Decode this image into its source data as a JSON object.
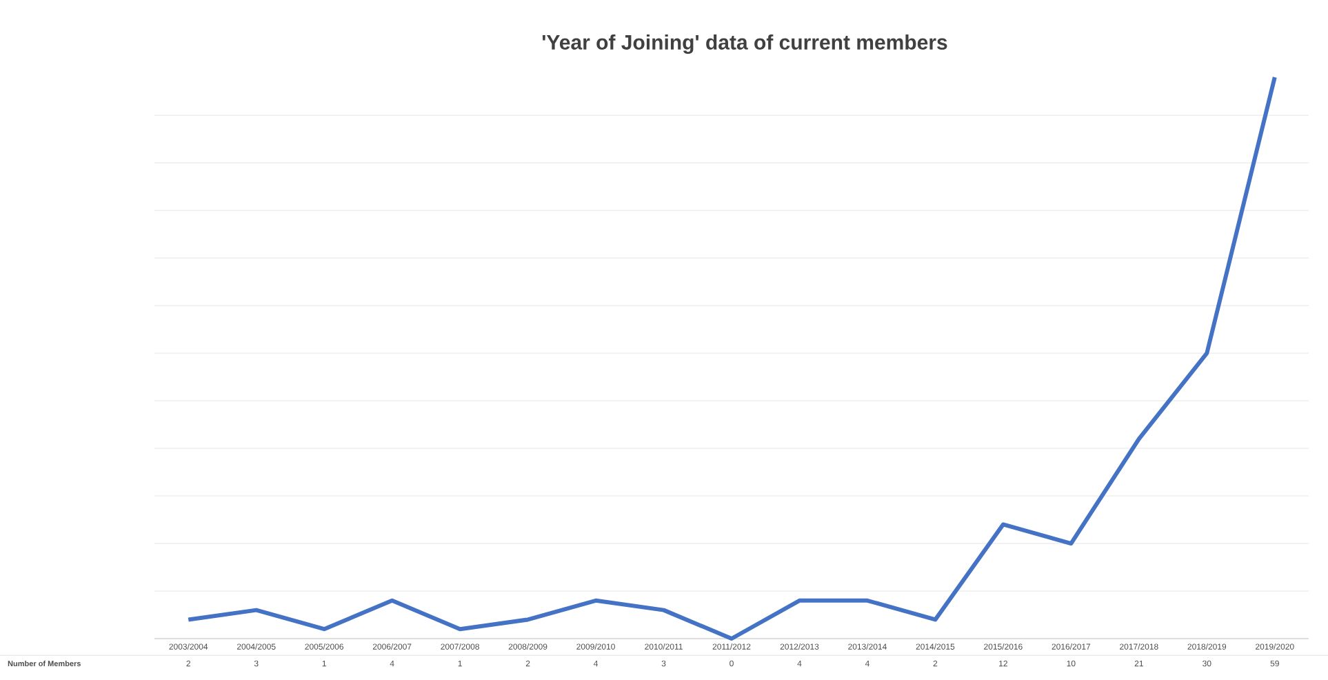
{
  "chart_data": {
    "type": "line",
    "title": "'Year of Joining' data of current members",
    "categories": [
      "2003/2004",
      "2004/2005",
      "2005/2006",
      "2006/2007",
      "2007/2008",
      "2008/2009",
      "2009/2010",
      "2010/2011",
      "2011/2012",
      "2012/2013",
      "2013/2014",
      "2014/2015",
      "2015/2016",
      "2016/2017",
      "2017/2018",
      "2018/2019",
      "2019/2020"
    ],
    "series": [
      {
        "name": "Number of Members",
        "color": "#4472c4",
        "values": [
          2,
          3,
          1,
          4,
          1,
          2,
          4,
          3,
          0,
          4,
          4,
          2,
          12,
          10,
          21,
          30,
          59
        ]
      }
    ],
    "tick_labels": "x",
    "grid": "y",
    "data_labels": true,
    "marker": "none",
    "line_style": "solid",
    "legend": false
  }
}
